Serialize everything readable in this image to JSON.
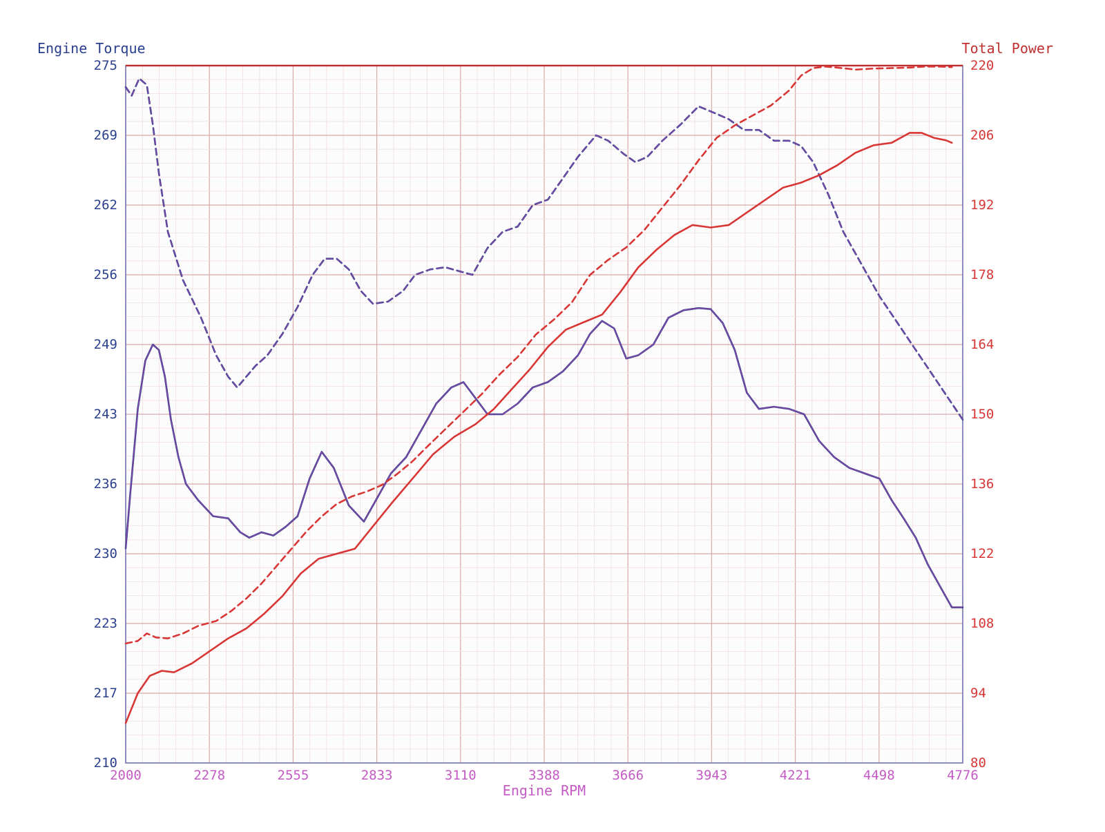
{
  "chart_data": {
    "type": "line",
    "left_axis_title": "Engine Torque",
    "right_axis_title": "Total Power",
    "x_axis_title": "Engine RPM",
    "xlim": [
      2000,
      4776
    ],
    "ylim_left": [
      210,
      275
    ],
    "ylim_right": [
      80,
      220
    ],
    "x_ticks": [
      "2000",
      "2278",
      "2555",
      "2833",
      "3110",
      "3388",
      "3666",
      "3943",
      "4221",
      "4498",
      "4776"
    ],
    "y_left_ticks": [
      "275",
      "269",
      "262",
      "256",
      "249",
      "243",
      "236",
      "230",
      "223",
      "217",
      "210"
    ],
    "y_right_ticks": [
      "220",
      "206",
      "192",
      "178",
      "164",
      "150",
      "136",
      "122",
      "108",
      "94",
      "80"
    ],
    "grid": true,
    "colors": {
      "torque": "#2b3f8f",
      "torque_highlight": "#b04ab0",
      "power": "#d83535",
      "left_labels": "#2b3f8f",
      "right_labels": "#d83535",
      "x_labels": "#c45ac4",
      "grid": "#d9a8a8",
      "frame": "#6a6aa8"
    },
    "series": [
      {
        "name": "Engine Torque",
        "axis": "left",
        "style": "dashed",
        "x": [
          2000,
          2020,
          2045,
          2070,
          2090,
          2110,
          2140,
          2190,
          2250,
          2300,
          2340,
          2370,
          2400,
          2430,
          2470,
          2520,
          2570,
          2620,
          2660,
          2700,
          2740,
          2780,
          2820,
          2870,
          2920,
          2960,
          3010,
          3060,
          3110,
          3150,
          3200,
          3250,
          3300,
          3350,
          3400,
          3450,
          3500,
          3560,
          3600,
          3650,
          3690,
          3730,
          3780,
          3840,
          3900,
          3960,
          4000,
          4050,
          4100,
          4150,
          4200,
          4240,
          4280,
          4330,
          4380,
          4440,
          4500,
          4560,
          4620,
          4680,
          4740,
          4776
        ],
        "values": [
          273.0,
          272.2,
          273.8,
          273.2,
          269.5,
          265.0,
          259.5,
          255.0,
          251.5,
          248.0,
          246.0,
          245.0,
          246.0,
          247.0,
          248.0,
          250.0,
          252.5,
          255.5,
          257.0,
          257.0,
          256.0,
          254.0,
          252.8,
          253.0,
          254.0,
          255.5,
          256.0,
          256.2,
          255.8,
          255.5,
          258.0,
          259.5,
          260.0,
          262.0,
          262.5,
          264.5,
          266.5,
          268.5,
          268.0,
          266.8,
          266.0,
          266.5,
          268.0,
          269.5,
          271.2,
          270.5,
          270.0,
          269.0,
          269.0,
          268.0,
          268.0,
          267.5,
          266.0,
          263.0,
          259.5,
          256.5,
          253.5,
          251.0,
          248.5,
          246.0,
          243.5,
          242.0
        ]
      },
      {
        "name": "Engine Torque",
        "axis": "left",
        "style": "solid",
        "x": [
          2000,
          2015,
          2040,
          2065,
          2090,
          2110,
          2130,
          2150,
          2175,
          2200,
          2240,
          2290,
          2340,
          2380,
          2410,
          2450,
          2490,
          2530,
          2570,
          2610,
          2650,
          2690,
          2740,
          2790,
          2830,
          2880,
          2930,
          2980,
          3030,
          3080,
          3120,
          3160,
          3200,
          3250,
          3300,
          3350,
          3400,
          3450,
          3500,
          3540,
          3580,
          3620,
          3660,
          3700,
          3750,
          3800,
          3850,
          3900,
          3940,
          3980,
          4020,
          4060,
          4100,
          4150,
          4200,
          4250,
          4300,
          4350,
          4400,
          4450,
          4500,
          4540,
          4580,
          4620,
          4660,
          4700,
          4740,
          4776
        ],
        "values": [
          230.0,
          235.0,
          243.0,
          247.5,
          249.0,
          248.5,
          246.0,
          242.0,
          238.5,
          236.0,
          234.5,
          233.0,
          232.8,
          231.5,
          231.0,
          231.5,
          231.2,
          232.0,
          233.0,
          236.5,
          239.0,
          237.5,
          234.0,
          232.5,
          234.5,
          237.0,
          238.5,
          241.0,
          243.5,
          245.0,
          245.5,
          244.0,
          242.5,
          242.5,
          243.5,
          245.0,
          245.5,
          246.5,
          248.0,
          250.0,
          251.2,
          250.5,
          247.7,
          248.0,
          249.0,
          251.5,
          252.2,
          252.4,
          252.3,
          251.0,
          248.5,
          244.5,
          243.0,
          243.2,
          243.0,
          242.5,
          240.0,
          238.5,
          237.5,
          237.0,
          236.5,
          234.5,
          232.8,
          231.0,
          228.5,
          226.5,
          224.5,
          224.5
        ]
      },
      {
        "name": "Total Power",
        "axis": "right",
        "style": "dashed",
        "x": [
          2000,
          2040,
          2070,
          2100,
          2140,
          2190,
          2240,
          2300,
          2350,
          2400,
          2450,
          2500,
          2550,
          2600,
          2650,
          2700,
          2750,
          2800,
          2850,
          2900,
          2950,
          3000,
          3060,
          3120,
          3180,
          3240,
          3300,
          3360,
          3420,
          3480,
          3540,
          3600,
          3660,
          3720,
          3780,
          3840,
          3900,
          3960,
          4020,
          4080,
          4140,
          4200,
          4240,
          4280,
          4320,
          4360,
          4420,
          4480,
          4540,
          4600,
          4650,
          4700,
          4740
        ],
        "values": [
          104.0,
          104.5,
          106.0,
          105.2,
          105.0,
          106.0,
          107.5,
          108.5,
          110.5,
          113.0,
          116.0,
          119.5,
          123.0,
          126.5,
          129.5,
          132.0,
          133.5,
          134.5,
          135.8,
          138.0,
          140.5,
          143.5,
          147.0,
          150.5,
          154.0,
          158.0,
          161.5,
          166.0,
          169.0,
          172.5,
          178.0,
          181.0,
          183.5,
          187.0,
          191.5,
          196.0,
          201.0,
          205.5,
          208.0,
          210.0,
          212.0,
          215.0,
          218.0,
          219.5,
          219.8,
          219.6,
          219.2,
          219.4,
          219.5,
          219.6,
          219.8,
          219.8,
          219.7
        ]
      },
      {
        "name": "Total Power",
        "axis": "right",
        "style": "solid",
        "x": [
          2000,
          2040,
          2080,
          2120,
          2160,
          2220,
          2280,
          2340,
          2400,
          2460,
          2520,
          2580,
          2640,
          2700,
          2760,
          2820,
          2880,
          2950,
          3020,
          3090,
          3160,
          3220,
          3280,
          3340,
          3400,
          3460,
          3520,
          3580,
          3640,
          3700,
          3760,
          3820,
          3880,
          3940,
          4000,
          4060,
          4120,
          4180,
          4240,
          4300,
          4360,
          4420,
          4480,
          4540,
          4600,
          4640,
          4680,
          4720,
          4740
        ],
        "values": [
          88.0,
          94.0,
          97.5,
          98.5,
          98.2,
          100.0,
          102.5,
          105.0,
          107.0,
          110.0,
          113.5,
          118.0,
          121.0,
          122.0,
          123.0,
          127.5,
          132.0,
          137.0,
          142.0,
          145.5,
          148.0,
          151.0,
          155.0,
          159.0,
          163.5,
          167.0,
          168.5,
          170.0,
          174.5,
          179.5,
          183.0,
          186.0,
          188.0,
          187.5,
          188.0,
          190.5,
          193.0,
          195.5,
          196.5,
          198.0,
          200.0,
          202.5,
          204.0,
          204.5,
          206.5,
          206.5,
          205.5,
          205.0,
          204.5
        ]
      }
    ]
  }
}
